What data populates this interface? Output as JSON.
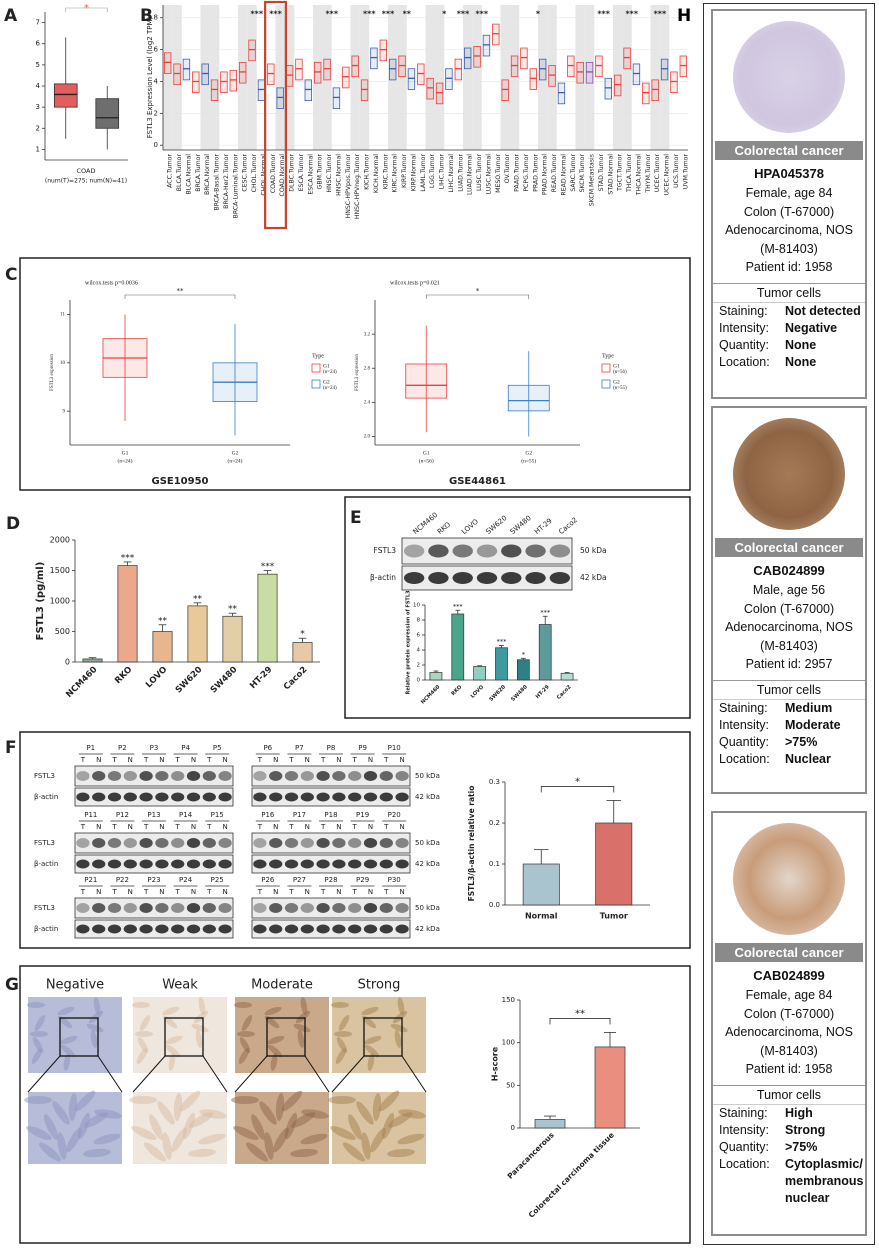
{
  "panel_a": {
    "label": "A",
    "type": "box",
    "style": "filled",
    "star": "*",
    "xlabel": "COAD",
    "note": "(num(T)=275; num(N)=41)",
    "ylim": [
      0.5,
      7.5
    ],
    "yticks": [
      1,
      2,
      3,
      4,
      5,
      6,
      7
    ],
    "colors": [
      "#e35d5d",
      "#6e6e6e"
    ],
    "whislo": [
      1.5,
      1.0
    ],
    "q1": [
      3.0,
      2.0
    ],
    "med": [
      3.6,
      2.5
    ],
    "q3": [
      4.1,
      3.4
    ],
    "whishi": [
      6.3,
      4.0
    ]
  },
  "panel_b": {
    "label": "B",
    "type": "box",
    "style": "outline",
    "ylabel": "FSTL3 Expression Level (log2 TPM)",
    "ylim": [
      -0.3,
      8.8
    ],
    "yticks": [
      0,
      2,
      4,
      6,
      8
    ],
    "categories": [
      "ACC.Tumor",
      "BLCA.Tumor",
      "BLCA.Normal",
      "BRCA.Tumor",
      "BRCA.Normal",
      "BRCA-Basal.Tumor",
      "BRCA-Her2.Tumor",
      "BRCA-Luminal.Tumor",
      "CESC.Tumor",
      "CHOL.Tumor",
      "CHOL.Normal",
      "COAD.Tumor",
      "COAD.Normal",
      "DLBC.Tumor",
      "ESCA.Tumor",
      "ESCA.Normal",
      "GBM.Tumor",
      "HNSC.Tumor",
      "HNSC.Normal",
      "HNSC-HPVpos.Tumor",
      "HNSC-HPVneg.Tumor",
      "KICH.Tumor",
      "KICH.Normal",
      "KIRC.Tumor",
      "KIRC.Normal",
      "KIRP.Tumor",
      "KIRP.Normal",
      "LAML.Tumor",
      "LGG.Tumor",
      "LIHC.Tumor",
      "LIHC.Normal",
      "LUAD.Tumor",
      "LUAD.Normal",
      "LUSC.Tumor",
      "LUSC.Normal",
      "MESO.Tumor",
      "OV.Tumor",
      "PAAD.Tumor",
      "PCPG.Tumor",
      "PRAD.Tumor",
      "PRAD.Normal",
      "READ.Tumor",
      "READ.Normal",
      "SARC.Tumor",
      "SKCM.Tumor",
      "SKCM.Metastasis",
      "STAD.Tumor",
      "STAD.Normal",
      "TGCT.Tumor",
      "THCA.Tumor",
      "THCA.Normal",
      "THYM.Tumor",
      "UCEC.Tumor",
      "UCEC.Normal",
      "UCS.Tumor",
      "UVM.Tumor"
    ],
    "colors": [
      "#e8413c",
      "#e8413c",
      "#3b5fb0",
      "#e8413c",
      "#3b5fb0",
      "#e8413c",
      "#e8413c",
      "#e8413c",
      "#e8413c",
      "#e8413c",
      "#3b5fb0",
      "#e8413c",
      "#3b5fb0",
      "#e8413c",
      "#e8413c",
      "#3b5fb0",
      "#e8413c",
      "#e8413c",
      "#3b5fb0",
      "#e8413c",
      "#e8413c",
      "#e8413c",
      "#3b5fb0",
      "#e8413c",
      "#3b5fb0",
      "#e8413c",
      "#3b5fb0",
      "#e8413c",
      "#e8413c",
      "#e8413c",
      "#3b5fb0",
      "#e8413c",
      "#3b5fb0",
      "#e8413c",
      "#3b5fb0",
      "#e8413c",
      "#e8413c",
      "#e8413c",
      "#e8413c",
      "#e8413c",
      "#3b5fb0",
      "#e8413c",
      "#3b5fb0",
      "#e8413c",
      "#e8413c",
      "#8a4fb0",
      "#e8413c",
      "#3b5fb0",
      "#e8413c",
      "#e8413c",
      "#3b5fb0",
      "#e8413c",
      "#e8413c",
      "#3b5fb0",
      "#e8413c",
      "#e8413c"
    ],
    "q1": [
      4.5,
      3.8,
      4.1,
      3.3,
      3.8,
      2.8,
      3.3,
      3.4,
      3.9,
      5.3,
      2.8,
      3.8,
      2.3,
      3.7,
      4.1,
      2.8,
      3.9,
      4.1,
      2.3,
      3.6,
      4.3,
      2.8,
      4.8,
      5.3,
      4.1,
      4.3,
      3.5,
      3.8,
      2.9,
      2.6,
      3.5,
      4.1,
      4.8,
      4.9,
      5.6,
      6.3,
      2.8,
      4.3,
      4.8,
      3.5,
      4.1,
      3.7,
      2.6,
      4.3,
      3.9,
      3.9,
      4.3,
      2.9,
      3.1,
      4.8,
      3.8,
      2.6,
      2.8,
      4.1,
      3.3,
      4.3
    ],
    "med": [
      5.2,
      4.5,
      4.8,
      4.0,
      4.5,
      3.5,
      4.0,
      4.1,
      4.6,
      6.0,
      3.5,
      4.5,
      3.0,
      4.4,
      4.8,
      3.5,
      4.6,
      4.8,
      3.0,
      4.3,
      5.0,
      3.5,
      5.5,
      6.0,
      4.8,
      5.0,
      4.2,
      4.5,
      3.6,
      3.3,
      4.2,
      4.8,
      5.5,
      5.6,
      6.3,
      7.0,
      3.5,
      5.0,
      5.5,
      4.2,
      4.8,
      4.4,
      3.3,
      5.0,
      4.6,
      4.6,
      5.0,
      3.6,
      3.8,
      5.5,
      4.5,
      3.3,
      3.5,
      4.8,
      4.0,
      5.0
    ],
    "q3": [
      5.8,
      5.1,
      5.4,
      4.6,
      5.1,
      4.1,
      4.6,
      4.7,
      5.2,
      6.6,
      4.1,
      5.1,
      3.6,
      5.0,
      5.4,
      4.1,
      5.2,
      5.4,
      3.6,
      4.9,
      5.6,
      4.1,
      6.1,
      6.6,
      5.4,
      5.6,
      4.8,
      5.1,
      4.2,
      3.9,
      4.8,
      5.4,
      6.1,
      6.2,
      6.9,
      7.6,
      4.1,
      5.6,
      6.1,
      4.8,
      5.4,
      5.0,
      3.9,
      5.6,
      5.2,
      5.2,
      5.6,
      4.2,
      4.4,
      6.1,
      5.1,
      3.9,
      4.1,
      5.4,
      4.6,
      5.6
    ],
    "annotations": [
      {
        "text": "***",
        "category": "CHOL.Tumor"
      },
      {
        "text": "***",
        "category": "COAD.Tumor"
      },
      {
        "text": "***",
        "category": "HNSC.Tumor"
      },
      {
        "text": "***",
        "category": "KICH.Tumor"
      },
      {
        "text": "***",
        "category": "KIRC.Tumor"
      },
      {
        "text": "**",
        "category": "KIRP.Tumor"
      },
      {
        "text": "*",
        "category": "LIHC.Tumor"
      },
      {
        "text": "***",
        "category": "LUAD.Tumor"
      },
      {
        "text": "***",
        "category": "LUSC.Tumor"
      },
      {
        "text": "*",
        "category": "PRAD.Tumor"
      },
      {
        "text": "***",
        "category": "STAD.Tumor"
      },
      {
        "text": "***",
        "category": "THCA.Tumor"
      },
      {
        "text": "***",
        "category": "UCEC.Tumor"
      }
    ],
    "highlight": [
      "COAD.Tumor",
      "COAD.Normal"
    ]
  },
  "panel_c": {
    "label": "C",
    "charts": [
      {
        "type": "box",
        "style": "outline",
        "stat": "wilcox.tests p=0.0036",
        "star": "**",
        "ylabel": "FSTL3 expression",
        "categories": [
          "G1",
          "G2"
        ],
        "counts": [
          "(n=24)",
          "(n=24)"
        ],
        "legend_title": "Type",
        "dataset": "GSE10950",
        "colors": [
          "#e8413c",
          "#3b7fc4"
        ],
        "ylim": [
          8.3,
          11.3
        ],
        "yticks": [
          9,
          10,
          11
        ],
        "whislo": [
          8.8,
          8.5
        ],
        "q1": [
          9.7,
          9.2
        ],
        "med": [
          10.1,
          9.6
        ],
        "q3": [
          10.5,
          10.0
        ],
        "whishi": [
          11.0,
          10.8
        ]
      },
      {
        "type": "box",
        "style": "outline",
        "stat": "wilcox.tests p=0.021",
        "star": "*",
        "ylabel": "FSTL3 expression",
        "categories": [
          "G1",
          "G2"
        ],
        "counts": [
          "(n=56)",
          "(n=55)"
        ],
        "legend_title": "Type",
        "dataset": "GSE44861",
        "colors": [
          "#e8413c",
          "#3b7fc4"
        ],
        "ylim": [
          1.9,
          3.6
        ],
        "yticks": [
          {
            "value": 2.0,
            "label": "2.0"
          },
          2.4,
          2.8,
          3.2
        ],
        "whislo": [
          2.05,
          2.0
        ],
        "q1": [
          2.45,
          2.3
        ],
        "med": [
          2.6,
          2.42
        ],
        "q3": [
          2.85,
          2.6
        ],
        "whishi": [
          3.3,
          3.0
        ]
      }
    ]
  },
  "panel_d": {
    "label": "D",
    "type": "bar",
    "ylabel": "FSTL3  (pg/ml)",
    "categories": [
      "NCM460",
      "RKO",
      "LOVO",
      "SW620",
      "SW480",
      "HT-29",
      "Caco2"
    ],
    "values": [
      50,
      1580,
      500,
      920,
      750,
      1440,
      320
    ],
    "errors": [
      20,
      60,
      110,
      50,
      50,
      60,
      70
    ],
    "stars": [
      null,
      "***",
      "**",
      "**",
      "**",
      "***",
      "*"
    ],
    "colors": [
      "#8fa890",
      "#eaa98d",
      "#e8b68e",
      "#e9c99a",
      "#e3cfa5",
      "#c9dca3",
      "#e8c8a6"
    ],
    "ylim": [
      0,
      2000
    ],
    "yticks": [
      0,
      500,
      1000,
      1500,
      2000
    ]
  },
  "panel_e": {
    "label": "E",
    "lanes": [
      "NCM460",
      "RKO",
      "LOVO",
      "SW620",
      "SW480",
      "HT-29",
      "Caco2"
    ],
    "blot_rows": [
      "FSTL3",
      "β-actin"
    ],
    "sizes": [
      "50 kDa",
      "42 kDa"
    ],
    "chart": {
      "type": "bar",
      "ylabel": "Relative protein expression of FSTL3",
      "categories": [
        "NCM460",
        "RKO",
        "LOVO",
        "SW620",
        "SW480",
        "HT-29",
        "Caco2"
      ],
      "values": [
        1,
        8.8,
        1.8,
        4.3,
        2.7,
        7.4,
        0.9
      ],
      "errors": [
        0.2,
        0.5,
        0.1,
        0.3,
        0.2,
        1.1,
        0.1
      ],
      "stars": [
        null,
        "***",
        null,
        "***",
        "*",
        "***",
        null
      ],
      "colors": [
        "#a9d6bf",
        "#4aa58a",
        "#8fd0c0",
        "#3e9aa0",
        "#2f7f86",
        "#5e9a9a",
        "#b6dcd3"
      ],
      "ylim": [
        0,
        10
      ],
      "yticks": [
        0,
        2,
        4,
        6,
        8,
        10
      ]
    }
  },
  "panel_f": {
    "label": "F",
    "patients": [
      "P1",
      "P2",
      "P3",
      "P4",
      "P5",
      "P6",
      "P7",
      "P8",
      "P9",
      "P10",
      "P11",
      "P12",
      "P13",
      "P14",
      "P15",
      "P16",
      "P17",
      "P18",
      "P19",
      "P20",
      "P21",
      "P22",
      "P23",
      "P24",
      "P25",
      "P26",
      "P27",
      "P28",
      "P29",
      "P30"
    ],
    "lanes": [
      "T",
      "N"
    ],
    "blot_rows": [
      "FSTL3",
      "β-actin"
    ],
    "sizes": [
      "50 kDa",
      "42 kDa"
    ],
    "chart": {
      "type": "bar",
      "ylabel": "FSTL3/β-actin relative ratio",
      "categories": [
        "Normal",
        "Tumor"
      ],
      "values": [
        0.1,
        0.2
      ],
      "errors": [
        0.035,
        0.055
      ],
      "colors": [
        "#a9c4cf",
        "#d9706a"
      ],
      "significance": "*",
      "ylim": [
        0,
        0.3
      ],
      "yticks": [
        {
          "value": 0,
          "label": "0.0"
        },
        0.1,
        0.2,
        0.3
      ]
    }
  },
  "panel_g": {
    "label": "G",
    "grades": [
      "Negative",
      "Weak",
      "Moderate",
      "Strong"
    ],
    "chart": {
      "type": "bar",
      "ylabel": "H-score",
      "categories": [
        "Paracancerous",
        "Colorectal carcinoma tissue"
      ],
      "values": [
        10,
        95
      ],
      "errors": [
        4,
        17
      ],
      "colors": [
        "#a9c4cf",
        "#ea8f80"
      ],
      "significance": "**",
      "ylim": [
        0,
        150
      ],
      "yticks": [
        0,
        50,
        100,
        150
      ]
    }
  },
  "panel_h": {
    "label": "H",
    "cards": [
      {
        "header": "Colorectal cancer",
        "antibody": "HPA045378",
        "patient": [
          "Female, age 84",
          "Colon (T-67000)",
          "Adenocarcinoma, NOS",
          "(M-81403)",
          "Patient id: 1958"
        ],
        "section": "Tumor cells",
        "rows": [
          {
            "key": "Staining:",
            "value": "Not detected"
          },
          {
            "key": "Intensity:",
            "value": "Negative"
          },
          {
            "key": "Quantity:",
            "value": "None"
          },
          {
            "key": "Location:",
            "value": "None"
          }
        ]
      },
      {
        "header": "Colorectal cancer",
        "antibody": "CAB024899",
        "patient": [
          "Male, age 56",
          "Colon (T-67000)",
          "Adenocarcinoma, NOS",
          "(M-81403)",
          "Patient id: 2957"
        ],
        "section": "Tumor cells",
        "rows": [
          {
            "key": "Staining:",
            "value": "Medium"
          },
          {
            "key": "Intensity:",
            "value": "Moderate"
          },
          {
            "key": "Quantity:",
            "value": ">75%"
          },
          {
            "key": "Location:",
            "value": "Nuclear"
          }
        ]
      },
      {
        "header": "Colorectal cancer",
        "antibody": "CAB024899",
        "patient": [
          "Female, age 84",
          "Colon (T-67000)",
          "Adenocarcinoma, NOS",
          "(M-81403)",
          "Patient id: 1958"
        ],
        "section": "Tumor cells",
        "rows": [
          {
            "key": "Staining:",
            "value": "High"
          },
          {
            "key": "Intensity:",
            "value": "Strong"
          },
          {
            "key": "Quantity:",
            "value": ">75%"
          },
          {
            "key": "Location:",
            "value": "Cytoplasmic/ membranous nuclear"
          }
        ]
      }
    ]
  }
}
